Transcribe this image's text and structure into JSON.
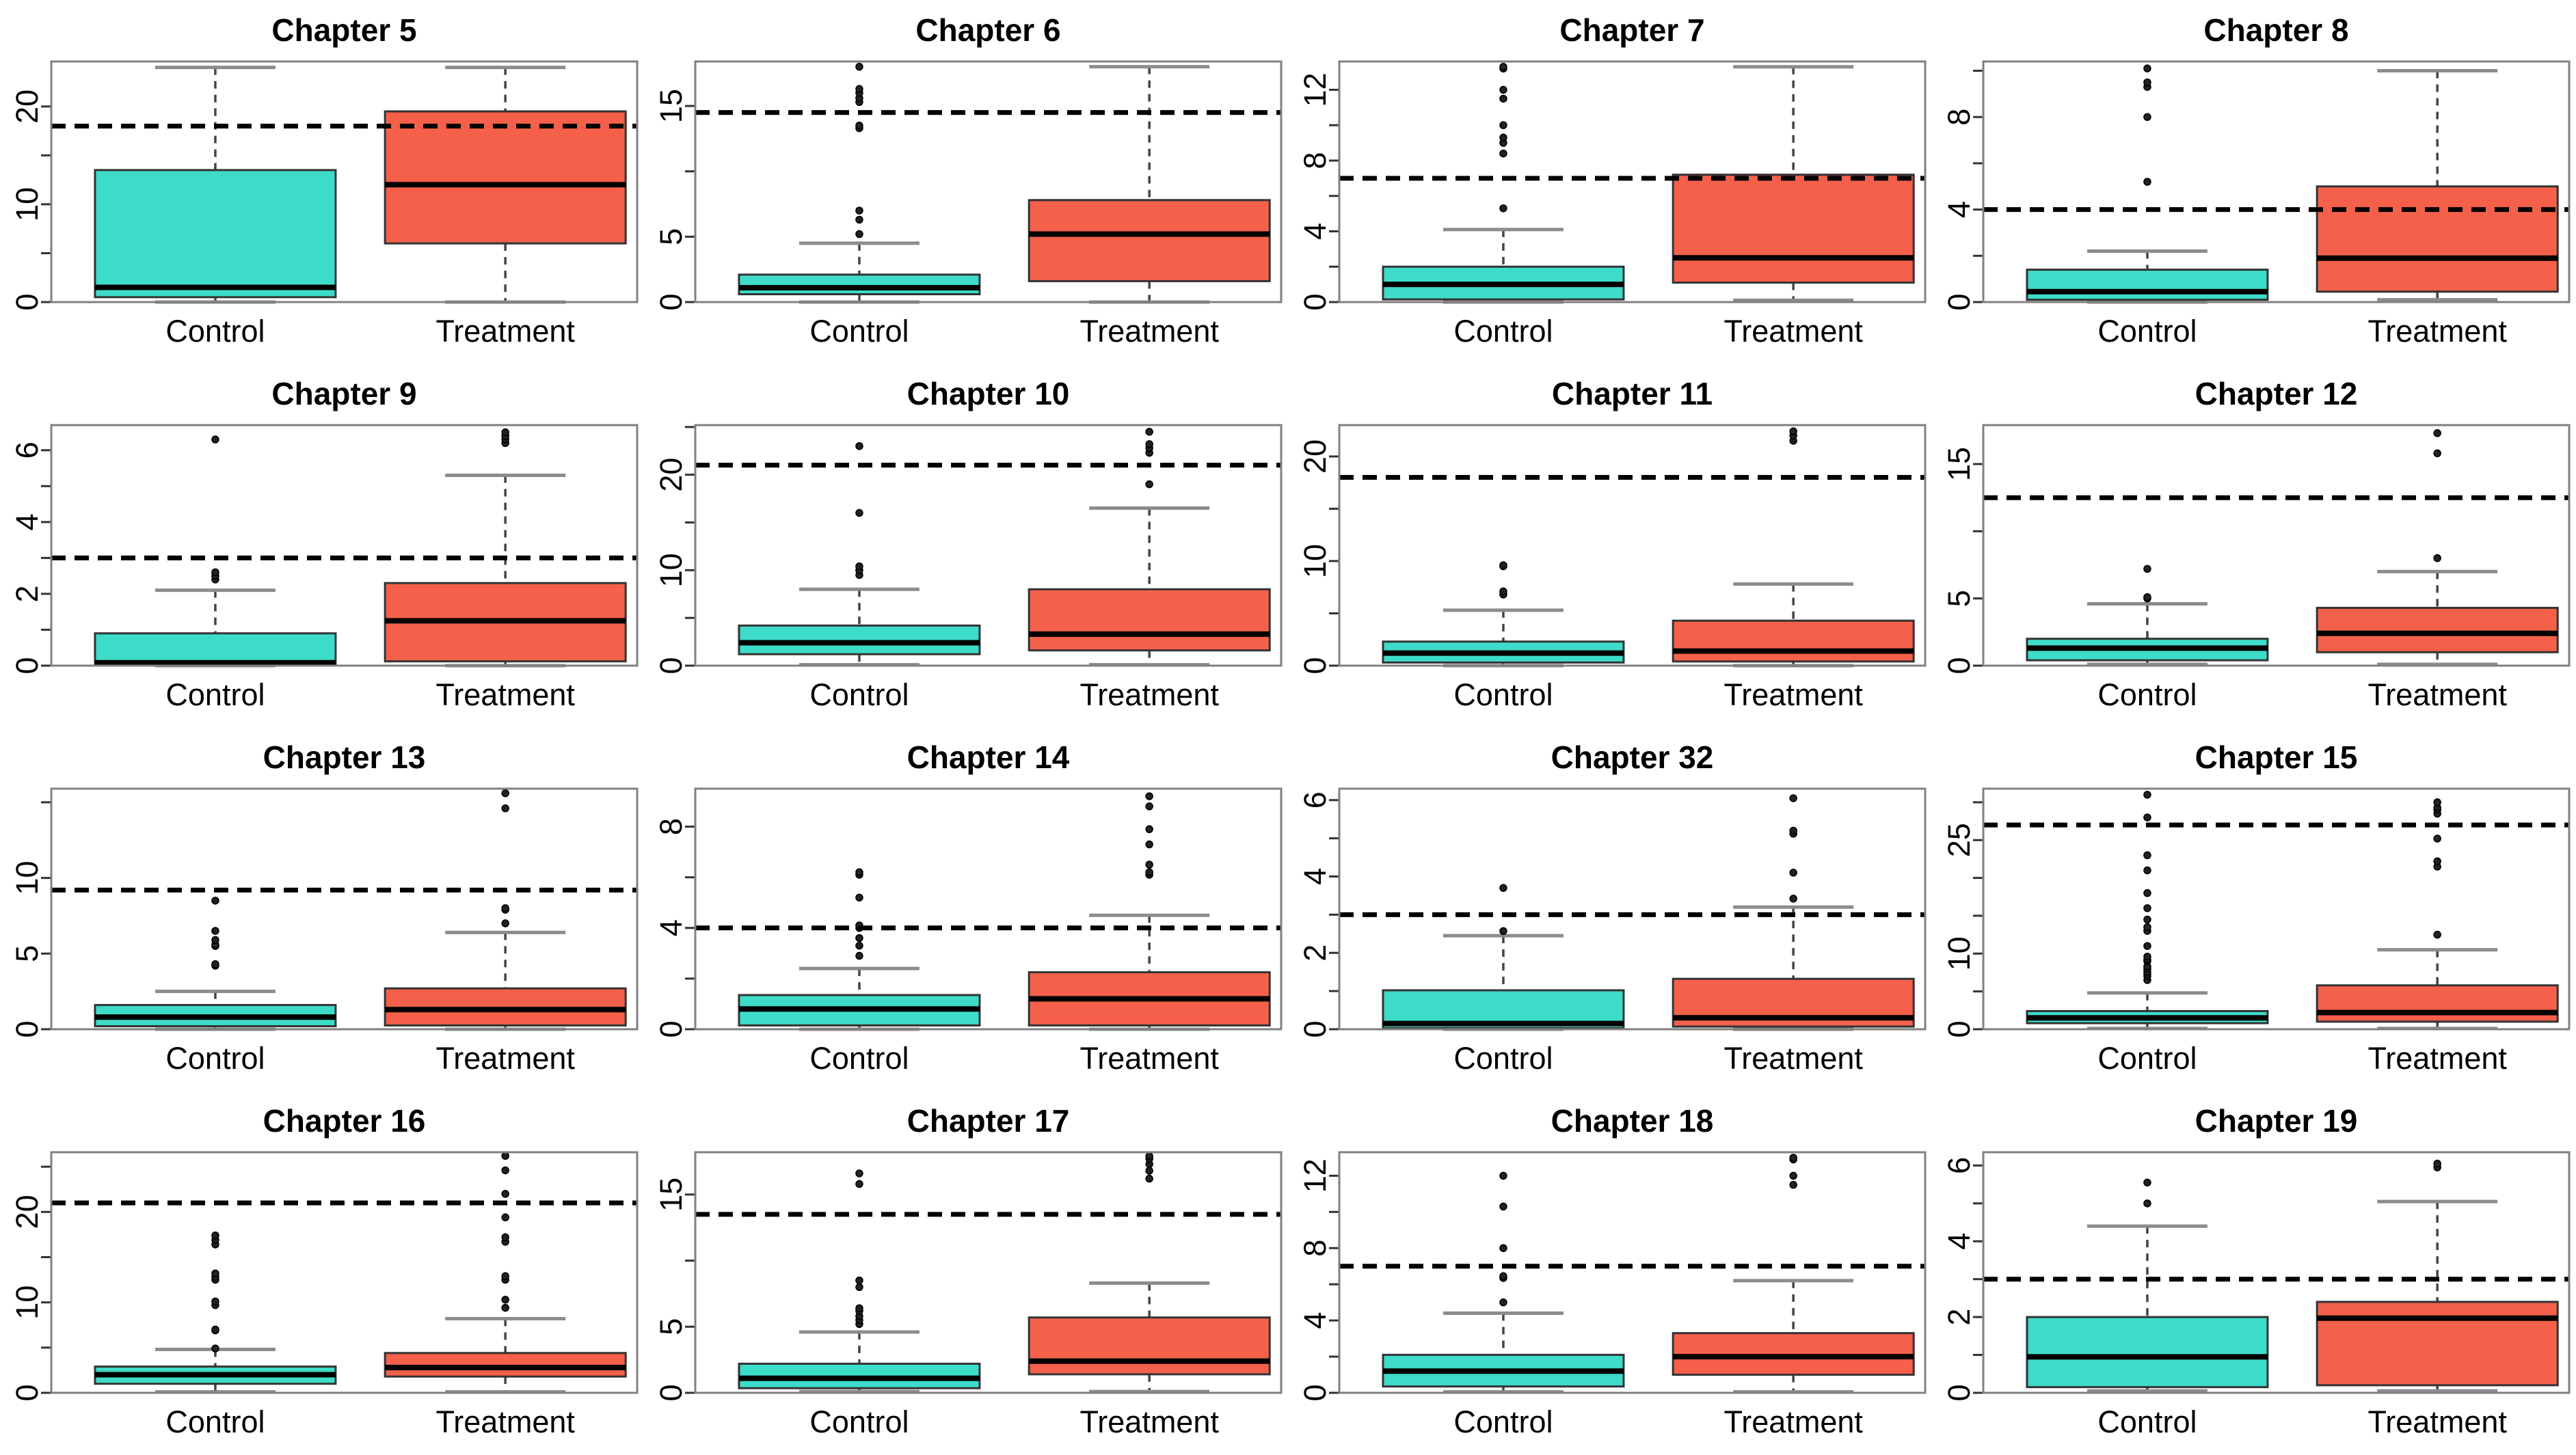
{
  "figure": {
    "layout": "4x4-grid-of-boxplots",
    "group_labels": [
      "Control",
      "Treatment"
    ],
    "colors": {
      "control_fill": "#3DDCC8",
      "treatment_fill": "#F4604A",
      "box_stroke": "#333333",
      "median": "#000000",
      "whisker": "#444444",
      "cap": "#8c8c8c",
      "plot_border": "#808080",
      "dashed_reference_line": "#000000",
      "background": "#ffffff"
    }
  },
  "chart_data": [
    {
      "type": "box",
      "title": "Chapter 5",
      "categories": [
        "Control",
        "Treatment"
      ],
      "ylim": [
        0,
        24.6
      ],
      "yticks_labeled": [
        0,
        10,
        20
      ],
      "yticks_minor": [
        5,
        15
      ],
      "hline": 18,
      "series": [
        {
          "name": "Control",
          "whisker_low": 0,
          "q1": 0.5,
          "median": 1.5,
          "q3": 13.5,
          "whisker_high": 24,
          "outliers": []
        },
        {
          "name": "Treatment",
          "whisker_low": 0,
          "q1": 6,
          "median": 12,
          "q3": 19.5,
          "whisker_high": 24,
          "outliers": []
        }
      ]
    },
    {
      "type": "box",
      "title": "Chapter 6",
      "categories": [
        "Control",
        "Treatment"
      ],
      "ylim": [
        0,
        18.4
      ],
      "yticks_labeled": [
        0,
        5,
        15
      ],
      "yticks_minor": [
        10
      ],
      "hline": 14.5,
      "series": [
        {
          "name": "Control",
          "whisker_low": 0,
          "q1": 0.6,
          "median": 1.1,
          "q3": 2.1,
          "whisker_high": 4.5,
          "outliers": [
            5.2,
            6.3,
            7.0,
            13.3,
            13.5,
            15.3,
            15.6,
            16.0,
            16.3,
            18.0
          ]
        },
        {
          "name": "Treatment",
          "whisker_low": 0,
          "q1": 1.6,
          "median": 5.2,
          "q3": 7.8,
          "whisker_high": 18,
          "outliers": []
        }
      ]
    },
    {
      "type": "box",
      "title": "Chapter 7",
      "categories": [
        "Control",
        "Treatment"
      ],
      "ylim": [
        0,
        13.6
      ],
      "yticks_labeled": [
        0,
        4,
        8,
        12
      ],
      "yticks_minor": [
        2,
        6,
        10
      ],
      "hline": 7,
      "series": [
        {
          "name": "Control",
          "whisker_low": 0,
          "q1": 0.15,
          "median": 1.0,
          "q3": 2.0,
          "whisker_high": 4.1,
          "outliers": [
            5.3,
            8.4,
            9.0,
            9.3,
            10.0,
            11.5,
            12.0,
            13.2,
            13.3
          ]
        },
        {
          "name": "Treatment",
          "whisker_low": 0.1,
          "q1": 1.1,
          "median": 2.5,
          "q3": 7.2,
          "whisker_high": 13.3,
          "outliers": []
        }
      ]
    },
    {
      "type": "box",
      "title": "Chapter 8",
      "categories": [
        "Control",
        "Treatment"
      ],
      "ylim": [
        0,
        10.4
      ],
      "yticks_labeled": [
        0,
        4,
        8
      ],
      "yticks_minor": [
        2,
        6,
        10
      ],
      "hline": 4,
      "series": [
        {
          "name": "Control",
          "whisker_low": 0,
          "q1": 0.1,
          "median": 0.45,
          "q3": 1.4,
          "whisker_high": 2.2,
          "outliers": [
            5.2,
            8.0,
            9.3,
            9.5,
            10.1
          ]
        },
        {
          "name": "Treatment",
          "whisker_low": 0.1,
          "q1": 0.45,
          "median": 1.9,
          "q3": 5.0,
          "whisker_high": 10.0,
          "outliers": []
        }
      ]
    },
    {
      "type": "box",
      "title": "Chapter 9",
      "categories": [
        "Control",
        "Treatment"
      ],
      "ylim": [
        0,
        6.7
      ],
      "yticks_labeled": [
        0,
        2,
        4,
        6
      ],
      "yticks_minor": [
        1,
        3,
        5
      ],
      "hline": 3,
      "series": [
        {
          "name": "Control",
          "whisker_low": 0,
          "q1": 0.02,
          "median": 0.08,
          "q3": 0.9,
          "whisker_high": 2.1,
          "outliers": [
            2.4,
            2.5,
            2.6,
            6.3
          ]
        },
        {
          "name": "Treatment",
          "whisker_low": 0,
          "q1": 0.12,
          "median": 1.25,
          "q3": 2.3,
          "whisker_high": 5.3,
          "outliers": [
            6.2,
            6.3,
            6.4,
            6.5
          ]
        }
      ]
    },
    {
      "type": "box",
      "title": "Chapter 10",
      "categories": [
        "Control",
        "Treatment"
      ],
      "ylim": [
        0,
        25.2
      ],
      "yticks_labeled": [
        0,
        10,
        20
      ],
      "yticks_minor": [
        5,
        15,
        25
      ],
      "hline": 21,
      "series": [
        {
          "name": "Control",
          "whisker_low": 0.1,
          "q1": 1.2,
          "median": 2.4,
          "q3": 4.2,
          "whisker_high": 8.0,
          "outliers": [
            9.5,
            10.0,
            10.4,
            16.0,
            23.0
          ]
        },
        {
          "name": "Treatment",
          "whisker_low": 0.1,
          "q1": 1.6,
          "median": 3.3,
          "q3": 8.0,
          "whisker_high": 16.5,
          "outliers": [
            19.0,
            22.3,
            22.8,
            23.2,
            24.5
          ]
        }
      ]
    },
    {
      "type": "box",
      "title": "Chapter 11",
      "categories": [
        "Control",
        "Treatment"
      ],
      "ylim": [
        0,
        23.0
      ],
      "yticks_labeled": [
        0,
        10,
        20
      ],
      "yticks_minor": [
        5,
        15
      ],
      "hline": 18,
      "series": [
        {
          "name": "Control",
          "whisker_low": 0,
          "q1": 0.3,
          "median": 1.2,
          "q3": 2.3,
          "whisker_high": 5.3,
          "outliers": [
            6.8,
            7.1,
            9.5,
            9.6
          ]
        },
        {
          "name": "Treatment",
          "whisker_low": 0,
          "q1": 0.4,
          "median": 1.4,
          "q3": 4.3,
          "whisker_high": 7.8,
          "outliers": [
            21.5,
            22.0,
            22.4
          ]
        }
      ]
    },
    {
      "type": "box",
      "title": "Chapter 12",
      "categories": [
        "Control",
        "Treatment"
      ],
      "ylim": [
        0,
        17.9
      ],
      "yticks_labeled": [
        0,
        5,
        15
      ],
      "yticks_minor": [
        10
      ],
      "hline": 12.5,
      "series": [
        {
          "name": "Control",
          "whisker_low": 0.1,
          "q1": 0.4,
          "median": 1.3,
          "q3": 2.0,
          "whisker_high": 4.6,
          "outliers": [
            5.0,
            5.1,
            7.2
          ]
        },
        {
          "name": "Treatment",
          "whisker_low": 0.1,
          "q1": 1.0,
          "median": 2.4,
          "q3": 4.3,
          "whisker_high": 7.0,
          "outliers": [
            8.0,
            15.8,
            17.3
          ]
        }
      ]
    },
    {
      "type": "box",
      "title": "Chapter 13",
      "categories": [
        "Control",
        "Treatment"
      ],
      "ylim": [
        0,
        15.9
      ],
      "yticks_labeled": [
        0,
        5,
        10
      ],
      "yticks_minor": [
        15
      ],
      "hline": 9.2,
      "series": [
        {
          "name": "Control",
          "whisker_low": 0,
          "q1": 0.2,
          "median": 0.8,
          "q3": 1.6,
          "whisker_high": 2.5,
          "outliers": [
            4.2,
            4.3,
            5.5,
            5.6,
            5.9,
            6.5,
            8.5
          ]
        },
        {
          "name": "Treatment",
          "whisker_low": 0,
          "q1": 0.25,
          "median": 1.3,
          "q3": 2.7,
          "whisker_high": 6.4,
          "outliers": [
            7.0,
            7.9,
            8.0,
            14.6,
            15.6
          ]
        }
      ]
    },
    {
      "type": "box",
      "title": "Chapter 14",
      "categories": [
        "Control",
        "Treatment"
      ],
      "ylim": [
        0,
        9.5
      ],
      "yticks_labeled": [
        0,
        4,
        8
      ],
      "yticks_minor": [
        2,
        6
      ],
      "hline": 4,
      "series": [
        {
          "name": "Control",
          "whisker_low": 0,
          "q1": 0.15,
          "median": 0.8,
          "q3": 1.35,
          "whisker_high": 2.4,
          "outliers": [
            2.9,
            3.3,
            3.6,
            4.0,
            4.1,
            5.2,
            6.1,
            6.2
          ]
        },
        {
          "name": "Treatment",
          "whisker_low": 0,
          "q1": 0.15,
          "median": 1.2,
          "q3": 2.25,
          "whisker_high": 4.5,
          "outliers": [
            6.1,
            6.2,
            6.5,
            7.3,
            7.9,
            8.8,
            9.2
          ]
        }
      ]
    },
    {
      "type": "box",
      "title": "Chapter 32",
      "categories": [
        "Control",
        "Treatment"
      ],
      "ylim": [
        0,
        6.3
      ],
      "yticks_labeled": [
        0,
        2,
        4,
        6
      ],
      "yticks_minor": [
        1,
        3,
        5
      ],
      "hline": 3,
      "series": [
        {
          "name": "Control",
          "whisker_low": 0,
          "q1": 0.03,
          "median": 0.15,
          "q3": 1.02,
          "whisker_high": 2.45,
          "outliers": [
            2.57,
            3.7
          ]
        },
        {
          "name": "Treatment",
          "whisker_low": 0,
          "q1": 0.07,
          "median": 0.3,
          "q3": 1.32,
          "whisker_high": 3.2,
          "outliers": [
            3.42,
            4.1,
            5.12,
            5.2,
            6.05
          ]
        }
      ]
    },
    {
      "type": "box",
      "title": "Chapter 15",
      "categories": [
        "Control",
        "Treatment"
      ],
      "ylim": [
        0,
        31.8
      ],
      "yticks_labeled": [
        0,
        10,
        25
      ],
      "yticks_minor": [
        5,
        15,
        20,
        30
      ],
      "hline": 27,
      "series": [
        {
          "name": "Control",
          "whisker_low": 0.1,
          "q1": 0.8,
          "median": 1.5,
          "q3": 2.4,
          "whisker_high": 4.8,
          "outliers": [
            6.5,
            7.0,
            7.3,
            7.6,
            8.0,
            8.3,
            9.0,
            9.2,
            9.6,
            11.0,
            13.0,
            13.5,
            14.5,
            16.0,
            18.0,
            21.0,
            23.0,
            28.0,
            31.0
          ]
        },
        {
          "name": "Treatment",
          "whisker_low": 0.1,
          "q1": 1.0,
          "median": 2.2,
          "q3": 5.8,
          "whisker_high": 10.5,
          "outliers": [
            12.5,
            21.5,
            22.2,
            25.2,
            28.5,
            29.0,
            29.3,
            30.0
          ]
        }
      ]
    },
    {
      "type": "box",
      "title": "Chapter 16",
      "categories": [
        "Control",
        "Treatment"
      ],
      "ylim": [
        0,
        26.6
      ],
      "yticks_labeled": [
        0,
        10,
        20
      ],
      "yticks_minor": [
        5,
        15,
        25
      ],
      "hline": 21,
      "series": [
        {
          "name": "Control",
          "whisker_low": 0.1,
          "q1": 1.0,
          "median": 2.0,
          "q3": 2.9,
          "whisker_high": 4.8,
          "outliers": [
            4.9,
            6.9,
            7.0,
            9.7,
            10.1,
            12.5,
            12.8,
            13.2,
            16.4,
            16.9,
            17.4
          ]
        },
        {
          "name": "Treatment",
          "whisker_low": 0.1,
          "q1": 1.8,
          "median": 2.8,
          "q3": 4.4,
          "whisker_high": 8.2,
          "outliers": [
            9.4,
            10.3,
            12.5,
            12.9,
            16.7,
            17.2,
            19.4,
            22.0,
            24.6,
            26.2
          ]
        }
      ]
    },
    {
      "type": "box",
      "title": "Chapter 17",
      "categories": [
        "Control",
        "Treatment"
      ],
      "ylim": [
        0,
        18.2
      ],
      "yticks_labeled": [
        0,
        5,
        15
      ],
      "yticks_minor": [
        10
      ],
      "hline": 13.5,
      "series": [
        {
          "name": "Control",
          "whisker_low": 0.1,
          "q1": 0.35,
          "median": 1.1,
          "q3": 2.2,
          "whisker_high": 4.6,
          "outliers": [
            5.2,
            5.5,
            5.8,
            6.2,
            6.4,
            8.0,
            8.5,
            15.8,
            16.6
          ]
        },
        {
          "name": "Treatment",
          "whisker_low": 0.1,
          "q1": 1.4,
          "median": 2.4,
          "q3": 5.7,
          "whisker_high": 8.3,
          "outliers": [
            16.2,
            16.8,
            17.3,
            17.7,
            17.9
          ]
        }
      ]
    },
    {
      "type": "box",
      "title": "Chapter 18",
      "categories": [
        "Control",
        "Treatment"
      ],
      "ylim": [
        0,
        13.3
      ],
      "yticks_labeled": [
        0,
        4,
        8,
        12
      ],
      "yticks_minor": [
        2,
        6,
        10
      ],
      "hline": 7,
      "series": [
        {
          "name": "Control",
          "whisker_low": 0.05,
          "q1": 0.35,
          "median": 1.2,
          "q3": 2.1,
          "whisker_high": 4.4,
          "outliers": [
            5.0,
            6.35,
            6.45,
            8.0,
            10.3,
            12.0
          ]
        },
        {
          "name": "Treatment",
          "whisker_low": 0.05,
          "q1": 1.0,
          "median": 2.0,
          "q3": 3.3,
          "whisker_high": 6.2,
          "outliers": [
            11.5,
            12.0,
            12.9,
            13.0
          ]
        }
      ]
    },
    {
      "type": "box",
      "title": "Chapter 19",
      "categories": [
        "Control",
        "Treatment"
      ],
      "ylim": [
        0,
        6.35
      ],
      "yticks_labeled": [
        0,
        2,
        4,
        6
      ],
      "yticks_minor": [
        1,
        3,
        5
      ],
      "hline": 3,
      "series": [
        {
          "name": "Control",
          "whisker_low": 0.05,
          "q1": 0.15,
          "median": 0.95,
          "q3": 2.0,
          "whisker_high": 4.4,
          "outliers": [
            5.0,
            5.55
          ]
        },
        {
          "name": "Treatment",
          "whisker_low": 0.05,
          "q1": 0.2,
          "median": 1.97,
          "q3": 2.4,
          "whisker_high": 5.05,
          "outliers": [
            5.95,
            6.05
          ]
        }
      ]
    }
  ]
}
